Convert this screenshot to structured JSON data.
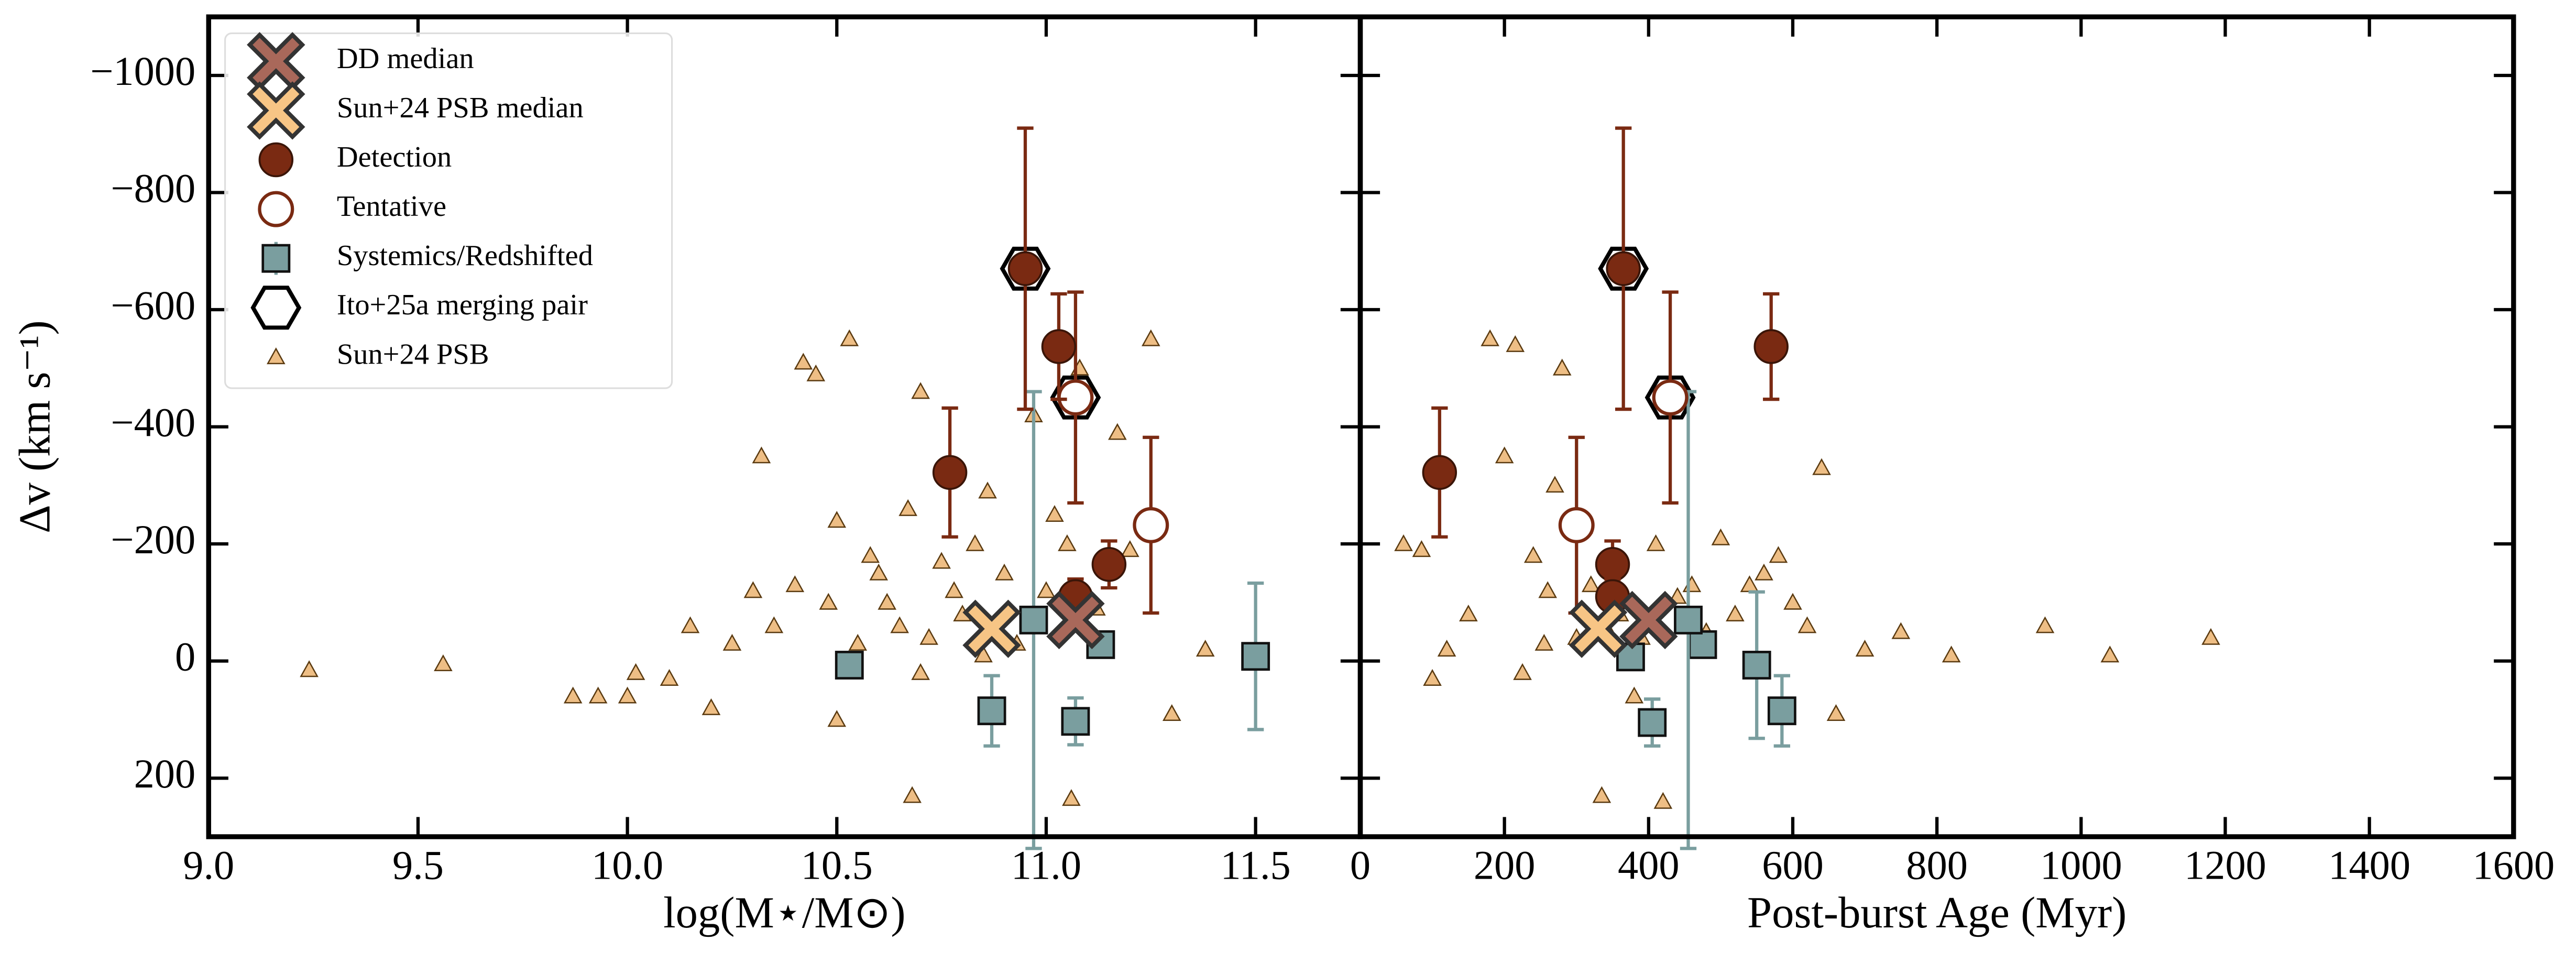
{
  "chart_data": [
    {
      "type": "scatter",
      "xlabel": "log(M⋆/M⊙)",
      "ylabel": "Δv (km s⁻¹)",
      "xlim": [
        9.0,
        11.75
      ],
      "ylim": [
        300,
        -1100
      ],
      "xticks": [
        {
          "value": 9.0,
          "label": "9.0"
        },
        {
          "value": 9.5,
          "label": "9.5"
        },
        {
          "value": 10.0,
          "label": "10.0"
        },
        {
          "value": 10.5,
          "label": "10.5"
        },
        {
          "value": 11.0,
          "label": "11.0"
        },
        {
          "value": 11.5,
          "label": "11.5"
        }
      ],
      "yticks": [
        {
          "value": -1000,
          "label": "−1000"
        },
        {
          "value": -800,
          "label": "−800"
        },
        {
          "value": -600,
          "label": "−600"
        },
        {
          "value": -400,
          "label": "−400"
        },
        {
          "value": -200,
          "label": "−200"
        },
        0,
        200
      ],
      "legend": "upper left",
      "series": [
        {
          "name": "DD median",
          "color": "#a9685a",
          "marker": "X",
          "x": [
            11.07
          ],
          "y": [
            -70
          ]
        },
        {
          "name": "Sun+24 PSB median",
          "color": "#f7c585",
          "marker": "X",
          "x": [
            10.87
          ],
          "y": [
            -55
          ]
        },
        {
          "name": "Detection",
          "color": "#7a2a12",
          "marker": "circle",
          "x": [
            10.77,
            10.95,
            11.03,
            11.07,
            11.15
          ],
          "y": [
            -322,
            -670,
            -537,
            -110,
            -165
          ],
          "yerr": [
            110,
            240,
            90,
            30,
            40
          ]
        },
        {
          "name": "Tentative",
          "color": "#7a2a12",
          "marker": "open-circle",
          "x": [
            11.07,
            11.25
          ],
          "y": [
            -450,
            -232
          ],
          "yerr": [
            180,
            150
          ]
        },
        {
          "name": "Systemics/Redshifted",
          "color": "#7a9e9f",
          "marker": "square",
          "x": [
            10.53,
            10.87,
            10.97,
            11.07,
            11.13,
            11.5
          ],
          "y": [
            7,
            85,
            -70,
            103,
            -28,
            -8
          ],
          "yerr": [
            10,
            60,
            390,
            40,
            15,
            125
          ]
        },
        {
          "name": "Ito+25a merging pair",
          "color": "#000000",
          "marker": "hexagon",
          "x": [
            10.95,
            11.07
          ],
          "y": [
            -670,
            -450
          ]
        },
        {
          "name": "Sun+24 PSB",
          "color": "#e8a85c",
          "marker": "triangle",
          "x": [
            9.24,
            9.56,
            9.87,
            9.93,
            10.0,
            10.02,
            10.1,
            10.15,
            10.2,
            10.25,
            10.3,
            10.32,
            10.35,
            10.4,
            10.42,
            10.45,
            10.48,
            10.5,
            10.53,
            10.55,
            10.58,
            10.6,
            10.62,
            10.65,
            10.67,
            10.7,
            10.72,
            10.75,
            10.78,
            10.8,
            10.83,
            10.86,
            10.9,
            10.93,
            10.97,
            11.0,
            11.02,
            11.05,
            11.08,
            11.12,
            11.17,
            11.2,
            11.25,
            11.3,
            11.38,
            10.68,
            11.06,
            10.5,
            10.7,
            10.85
          ],
          "y": [
            15,
            5,
            60,
            60,
            60,
            20,
            30,
            -60,
            80,
            -30,
            -120,
            -350,
            -60,
            -130,
            -510,
            -490,
            -100,
            -240,
            -550,
            -30,
            -180,
            -150,
            -100,
            -60,
            -260,
            -460,
            -40,
            -170,
            -120,
            -80,
            -200,
            -290,
            -150,
            -30,
            -420,
            -120,
            -250,
            -200,
            -500,
            -90,
            -390,
            -190,
            -550,
            90,
            -20,
            230,
            235,
            100,
            20,
            -10
          ]
        }
      ]
    },
    {
      "type": "scatter",
      "xlabel": "Post-burst Age (Myr)",
      "xlim": [
        0,
        1600
      ],
      "ylim": [
        300,
        -1100
      ],
      "xticks": [
        0,
        200,
        400,
        600,
        800,
        1000,
        1200,
        1400,
        1600
      ],
      "series": [
        {
          "color": "#a9685a",
          "marker": "X",
          "x": [
            400
          ],
          "y": [
            -70
          ]
        },
        {
          "color": "#f7c585",
          "marker": "X",
          "x": [
            330
          ],
          "y": [
            -55
          ]
        },
        {
          "color": "#7a2a12",
          "marker": "circle",
          "x": [
            110,
            365,
            570,
            350,
            350
          ],
          "y": [
            -322,
            -670,
            -537,
            -165,
            -110
          ],
          "yerr": [
            110,
            240,
            90,
            40,
            30
          ]
        },
        {
          "color": "#7a2a12",
          "marker": "open-circle",
          "x": [
            430,
            300
          ],
          "y": [
            -450,
            -232
          ],
          "yerr": [
            180,
            150
          ]
        },
        {
          "color": "#7a9e9f",
          "marker": "square",
          "x": [
            375,
            405,
            475,
            550,
            585,
            455
          ],
          "y": [
            -7,
            105,
            -28,
            7,
            85,
            -70
          ],
          "yerr": [
            10,
            40,
            15,
            125,
            60,
            390
          ]
        },
        {
          "color": "#000000",
          "marker": "hexagon",
          "x": [
            365,
            430
          ],
          "y": [
            -670,
            -450
          ]
        },
        {
          "color": "#e8a85c",
          "marker": "triangle",
          "x": [
            60,
            85,
            100,
            120,
            150,
            180,
            200,
            215,
            240,
            260,
            270,
            280,
            300,
            310,
            320,
            335,
            340,
            360,
            390,
            410,
            420,
            440,
            460,
            480,
            500,
            520,
            540,
            560,
            580,
            600,
            620,
            640,
            660,
            700,
            750,
            820,
            950,
            1040,
            1180,
            255,
            225,
            380
          ],
          "y": [
            -200,
            -190,
            30,
            -20,
            -80,
            -550,
            -350,
            -540,
            -180,
            -120,
            -300,
            -500,
            -40,
            -230,
            -130,
            230,
            -60,
            -80,
            -40,
            -200,
            240,
            -110,
            -130,
            -50,
            -210,
            -80,
            -130,
            -150,
            -180,
            -100,
            -60,
            -330,
            90,
            -20,
            -50,
            -10,
            -60,
            -10,
            -40,
            -30,
            20,
            60
          ]
        }
      ]
    }
  ]
}
